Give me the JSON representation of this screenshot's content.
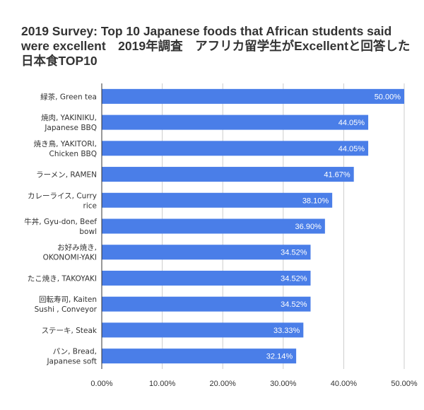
{
  "chart_data": {
    "type": "bar",
    "orientation": "horizontal",
    "title": "2019 Survey: Top 10 Japanese foods that African students said were excellent　2019年調査　アフリカ留学生がExcellentと回答した日本食TOP10",
    "categories": [
      [
        "緑茶, Green tea"
      ],
      [
        "焼肉, YAKINIKU,",
        "Japanese BBQ"
      ],
      [
        "焼き鳥, YAKITORI,",
        "Chicken BBQ"
      ],
      [
        "ラーメン, RAMEN"
      ],
      [
        "カレーライス, Curry",
        "rice"
      ],
      [
        "牛丼, Gyu-don, Beef",
        "bowl"
      ],
      [
        "お好み焼き,",
        "OKONOMI-YAKI"
      ],
      [
        "たこ焼き, TAKOYAKI"
      ],
      [
        "回転寿司, Kaiten",
        "Sushi , Conveyor"
      ],
      [
        "ステーキ, Steak"
      ],
      [
        "パン, Bread,",
        "Japanese soft"
      ]
    ],
    "values": [
      50.0,
      44.05,
      44.05,
      41.67,
      38.1,
      36.9,
      34.52,
      34.52,
      34.52,
      33.33,
      32.14
    ],
    "data_labels": [
      "50.00%",
      "44.05%",
      "44.05%",
      "41.67%",
      "38.10%",
      "36.90%",
      "34.52%",
      "34.52%",
      "34.52%",
      "33.33%",
      "32.14%"
    ],
    "xlim": [
      0,
      50
    ],
    "xticks": [
      0,
      10,
      20,
      30,
      40,
      50
    ],
    "xtick_labels": [
      "0.00%",
      "10.00%",
      "20.00%",
      "30.00%",
      "40.00%",
      "50.00%"
    ],
    "xlabel": "",
    "ylabel": "",
    "grid": true,
    "legend": "none",
    "colors": {
      "bar": "#4a7ee8",
      "grid": "#cccccc",
      "axis": "#333333",
      "text": "#333333",
      "label": "#ffffff"
    }
  }
}
